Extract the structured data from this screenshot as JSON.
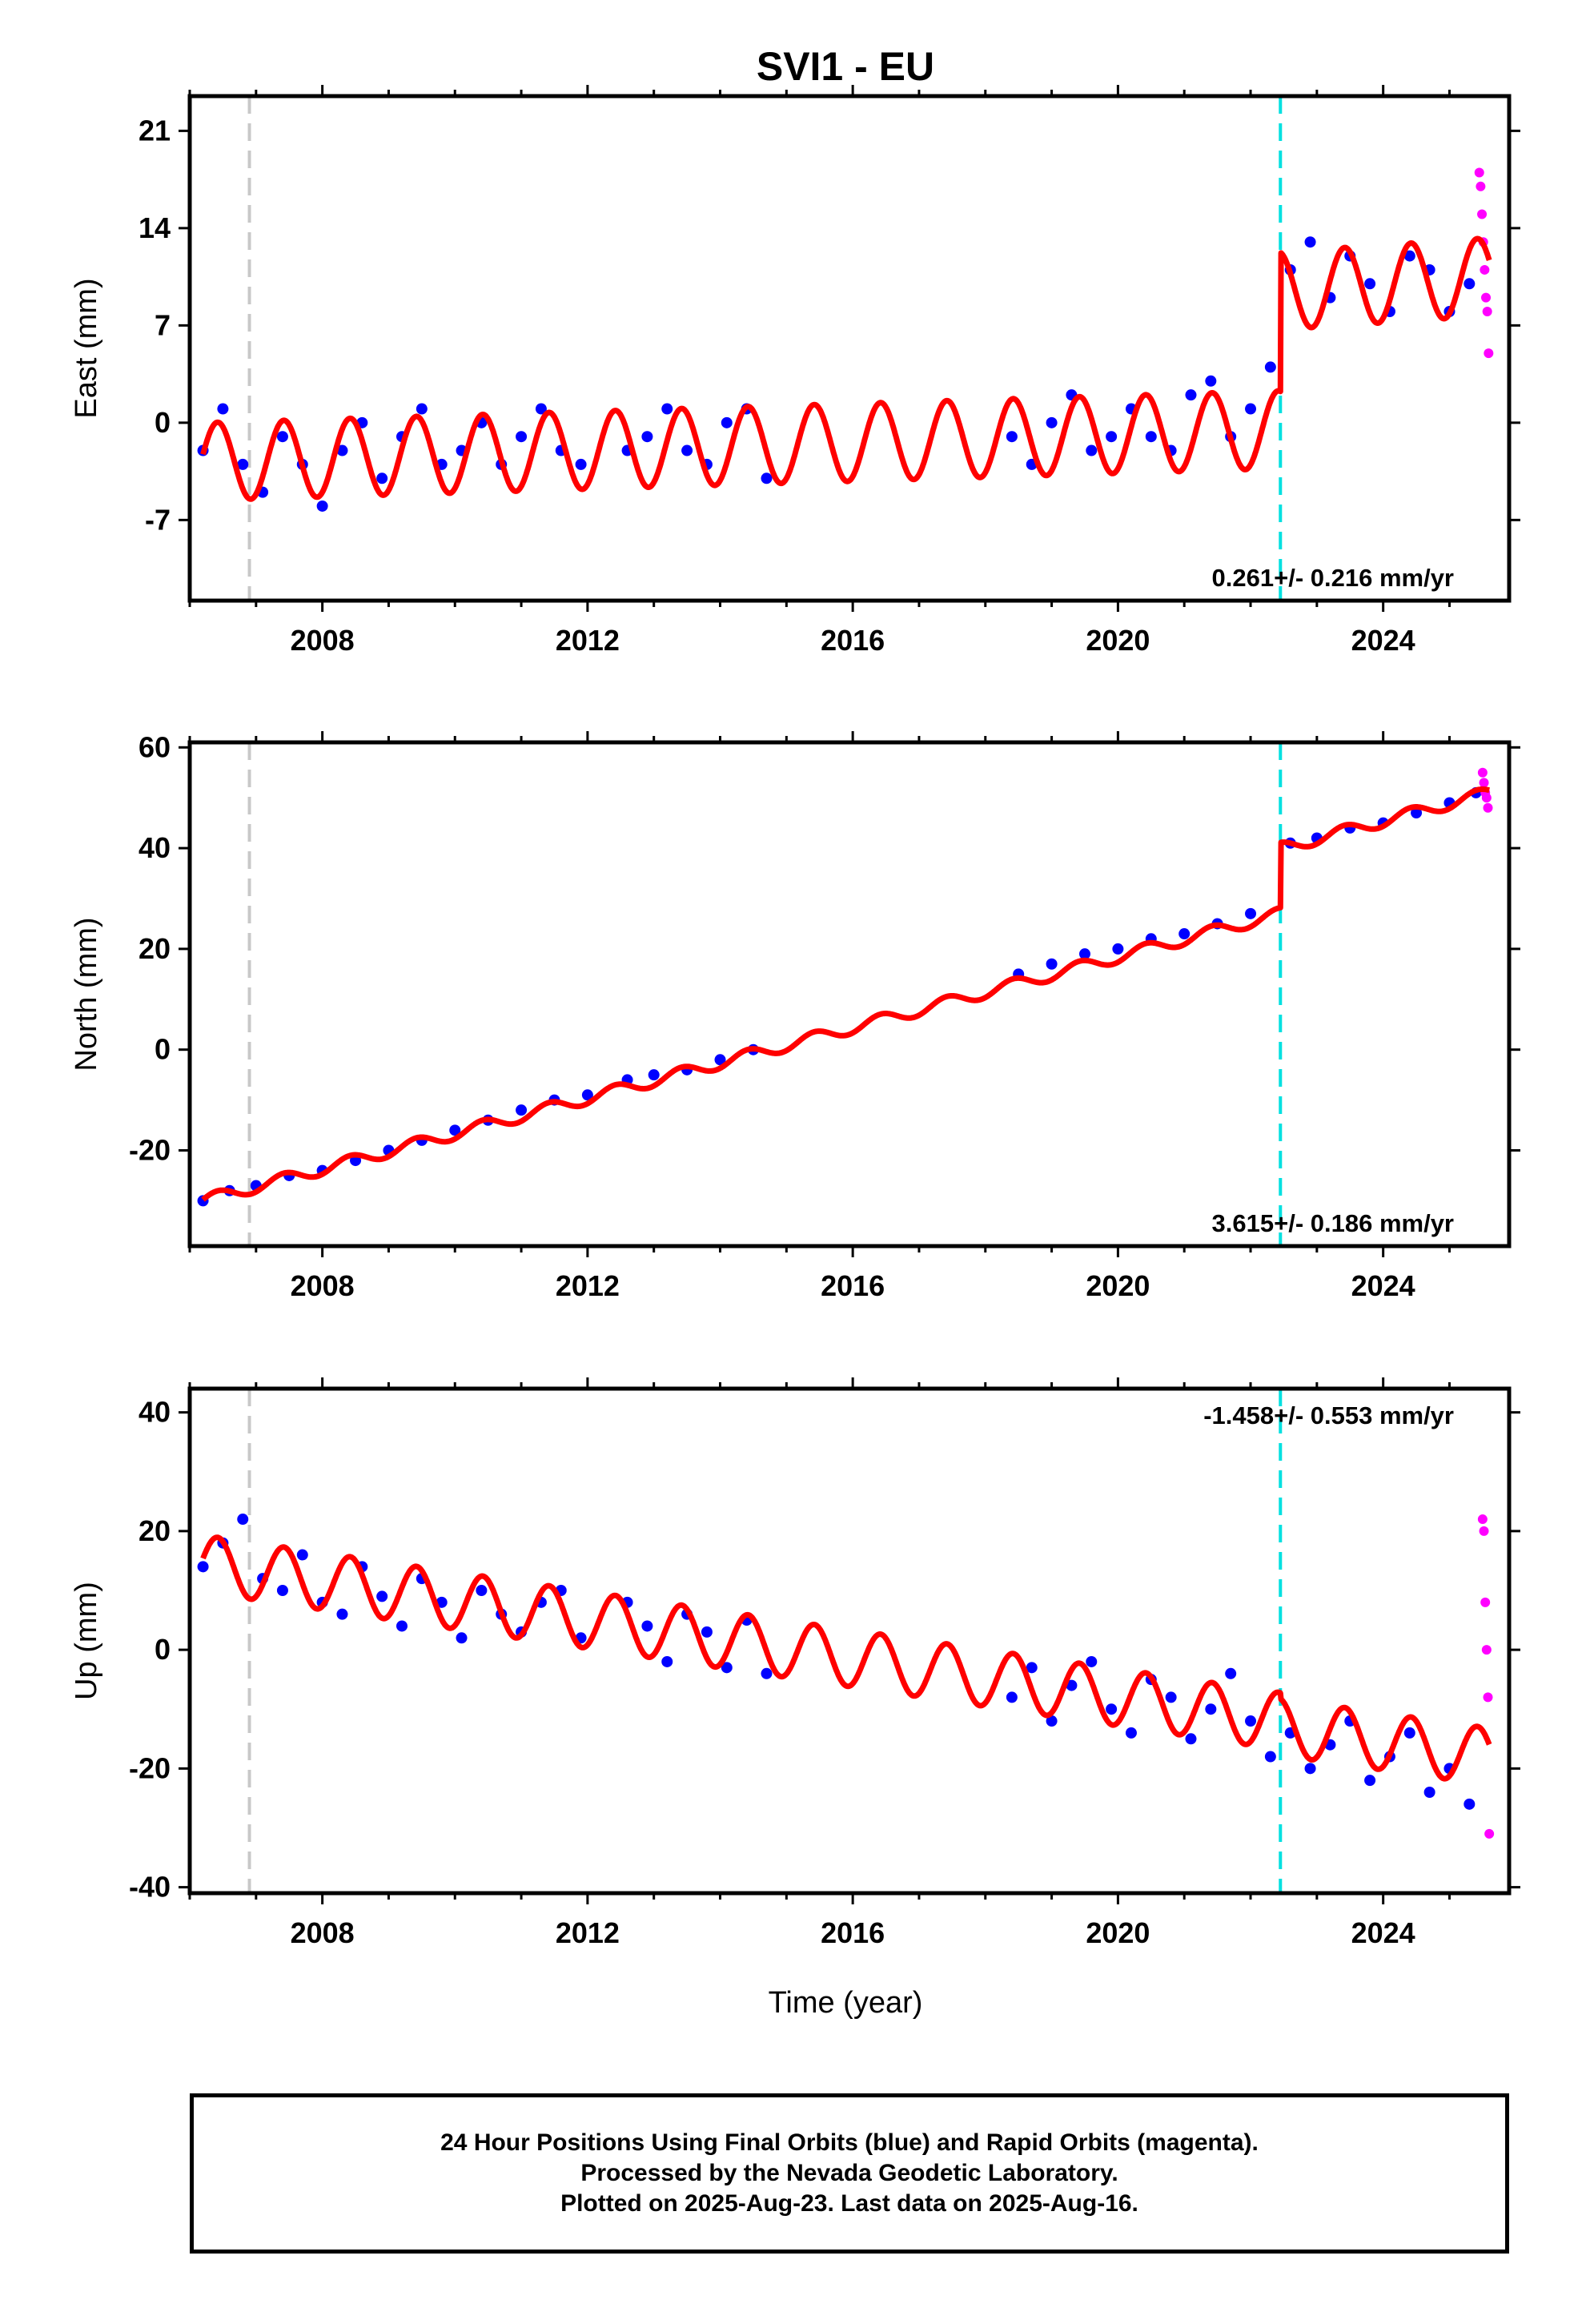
{
  "chart_data": {
    "type": "scatter",
    "title": "SVI1 - EU",
    "xlabel": "Time (year)",
    "xlim": [
      2006.0,
      2025.9
    ],
    "x_ticks": [
      2008,
      2012,
      2016,
      2020,
      2024
    ],
    "x_tick_labels": [
      "2008",
      "2012",
      "2016",
      "2020",
      "2024"
    ],
    "vertical_lines": [
      {
        "x": 2006.9,
        "color": "#c8c8c8",
        "style": "dashed"
      },
      {
        "x": 2022.45,
        "color": "#00e0e0",
        "style": "dashed"
      }
    ],
    "colors": {
      "final_orbits": "#0000ff",
      "rapid_orbits": "#ff00ff",
      "model": "#ff0000"
    },
    "panels": [
      {
        "ylabel": "East (mm)",
        "ylim": [
          -12.8,
          23.5
        ],
        "y_ticks": [
          -7,
          0,
          7,
          14,
          21
        ],
        "y_tick_labels": [
          "-7",
          "0",
          "7",
          "14",
          "21"
        ],
        "rate_label": "0.261+/- 0.216 mm/yr",
        "rate_position": "bottom-right",
        "series": [
          {
            "name": "Final Orbits",
            "style": "points",
            "color": "#0000ff",
            "x": [
              2006.2,
              2006.5,
              2006.8,
              2007.1,
              2007.4,
              2007.7,
              2008.0,
              2008.3,
              2008.6,
              2008.9,
              2009.2,
              2009.5,
              2009.8,
              2010.1,
              2010.4,
              2010.7,
              2011.0,
              2011.3,
              2011.6,
              2011.9,
              2012.6,
              2012.9,
              2013.2,
              2013.5,
              2013.8,
              2014.1,
              2014.4,
              2014.7,
              2018.4,
              2018.7,
              2019.0,
              2019.3,
              2019.6,
              2019.9,
              2020.2,
              2020.5,
              2020.8,
              2021.1,
              2021.4,
              2021.7,
              2022.0,
              2022.3,
              2022.6,
              2022.9,
              2023.2,
              2023.5,
              2023.8,
              2024.1,
              2024.4,
              2024.7,
              2025.0,
              2025.3
            ],
            "y": [
              -2,
              1,
              -3,
              -5,
              -1,
              -3,
              -6,
              -2,
              0,
              -4,
              -1,
              1,
              -3,
              -2,
              0,
              -3,
              -1,
              1,
              -2,
              -3,
              -2,
              -1,
              1,
              -2,
              -3,
              0,
              1,
              -4,
              -1,
              -3,
              0,
              2,
              -2,
              -1,
              1,
              -1,
              -2,
              2,
              3,
              -1,
              1,
              4,
              11,
              13,
              9,
              12,
              10,
              8,
              12,
              11,
              8,
              10
            ]
          },
          {
            "name": "Rapid Orbits",
            "style": "points",
            "color": "#ff00ff",
            "x": [
              2025.45,
              2025.47,
              2025.49,
              2025.51,
              2025.53,
              2025.55,
              2025.57,
              2025.59
            ],
            "y": [
              18,
              17,
              15,
              13,
              11,
              9,
              8,
              5
            ]
          },
          {
            "name": "Model",
            "style": "line",
            "color": "#ff0000",
            "base": [
              [
                2006.2,
                -2.8
              ],
              [
                2022.45,
                -0.5
              ],
              [
                2022.46,
                9.5
              ],
              [
                2025.6,
                10.5
              ]
            ],
            "amplitude": 2.8,
            "phase_year": 2006.42
          }
        ]
      },
      {
        "ylabel": "North (mm)",
        "ylim": [
          -39,
          61
        ],
        "y_ticks": [
          -20,
          0,
          20,
          40,
          60
        ],
        "y_tick_labels": [
          "-20",
          "0",
          "20",
          "40",
          "60"
        ],
        "rate_label": "3.615+/- 0.186 mm/yr",
        "rate_position": "bottom-right",
        "series": [
          {
            "name": "Final Orbits",
            "style": "points",
            "color": "#0000ff",
            "x": [
              2006.2,
              2006.6,
              2007.0,
              2007.5,
              2008.0,
              2008.5,
              2009.0,
              2009.5,
              2010.0,
              2010.5,
              2011.0,
              2011.5,
              2012.0,
              2012.6,
              2013.0,
              2013.5,
              2014.0,
              2014.5,
              2018.5,
              2019.0,
              2019.5,
              2020.0,
              2020.5,
              2021.0,
              2021.5,
              2022.0,
              2022.6,
              2023.0,
              2023.5,
              2024.0,
              2024.5,
              2025.0,
              2025.4
            ],
            "y": [
              -30,
              -28,
              -27,
              -25,
              -24,
              -22,
              -20,
              -18,
              -16,
              -14,
              -12,
              -10,
              -9,
              -6,
              -5,
              -4,
              -2,
              0,
              15,
              17,
              19,
              20,
              22,
              23,
              25,
              27,
              41,
              42,
              44,
              45,
              47,
              49,
              51
            ]
          },
          {
            "name": "Rapid Orbits",
            "style": "points",
            "color": "#ff00ff",
            "x": [
              2025.5,
              2025.52,
              2025.54,
              2025.56,
              2025.58
            ],
            "y": [
              55,
              53,
              51,
              50,
              48
            ]
          },
          {
            "name": "Model",
            "style": "line",
            "color": "#ff0000",
            "base": [
              [
                2006.2,
                -30
              ],
              [
                2022.45,
                27
              ],
              [
                2022.46,
                40
              ],
              [
                2025.6,
                51
              ]
            ],
            "amplitude": 1.2,
            "phase_year": 2006.42
          }
        ]
      },
      {
        "ylabel": "Up (mm)",
        "ylim": [
          -41,
          44
        ],
        "y_ticks": [
          -40,
          -20,
          0,
          20,
          40
        ],
        "y_tick_labels": [
          "-40",
          "-20",
          "0",
          "20",
          "40"
        ],
        "rate_label": "-1.458+/- 0.553 mm/yr",
        "rate_position": "top-right",
        "series": [
          {
            "name": "Final Orbits",
            "style": "points",
            "color": "#0000ff",
            "x": [
              2006.2,
              2006.5,
              2006.8,
              2007.1,
              2007.4,
              2007.7,
              2008.0,
              2008.3,
              2008.6,
              2008.9,
              2009.2,
              2009.5,
              2009.8,
              2010.1,
              2010.4,
              2010.7,
              2011.0,
              2011.3,
              2011.6,
              2011.9,
              2012.6,
              2012.9,
              2013.2,
              2013.5,
              2013.8,
              2014.1,
              2014.4,
              2014.7,
              2018.4,
              2018.7,
              2019.0,
              2019.3,
              2019.6,
              2019.9,
              2020.2,
              2020.5,
              2020.8,
              2021.1,
              2021.4,
              2021.7,
              2022.0,
              2022.3,
              2022.6,
              2022.9,
              2023.2,
              2023.5,
              2023.8,
              2024.1,
              2024.4,
              2024.7,
              2025.0,
              2025.3
            ],
            "y": [
              14,
              18,
              22,
              12,
              10,
              16,
              8,
              6,
              14,
              9,
              4,
              12,
              8,
              2,
              10,
              6,
              3,
              8,
              10,
              2,
              8,
              4,
              -2,
              6,
              3,
              -3,
              5,
              -4,
              -8,
              -3,
              -12,
              -6,
              -2,
              -10,
              -14,
              -5,
              -8,
              -15,
              -10,
              -4,
              -12,
              -18,
              -14,
              -20,
              -16,
              -12,
              -22,
              -18,
              -14,
              -24,
              -20,
              -26
            ]
          },
          {
            "name": "Rapid Orbits",
            "style": "points",
            "color": "#ff00ff",
            "x": [
              2025.5,
              2025.52,
              2025.54,
              2025.56,
              2025.58,
              2025.6
            ],
            "y": [
              22,
              20,
              8,
              0,
              -8,
              -31
            ]
          },
          {
            "name": "Model",
            "style": "line",
            "color": "#ff0000",
            "base": [
              [
                2006.2,
                14.5
              ],
              [
                2022.45,
                -12
              ],
              [
                2022.46,
                -13
              ],
              [
                2025.6,
                -18
              ]
            ],
            "amplitude": 4.8,
            "phase_year": 2006.42
          }
        ]
      }
    ]
  },
  "caption": {
    "line1": "24 Hour Positions Using Final Orbits (blue) and Rapid Orbits (magenta).",
    "line2": "Processed by the Nevada Geodetic Laboratory.",
    "line3": "Plotted on 2025-Aug-23. Last data on 2025-Aug-16."
  }
}
